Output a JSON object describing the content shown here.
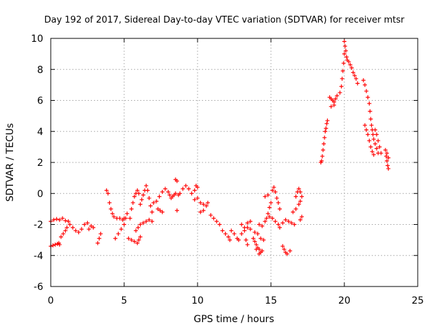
{
  "chart_data": {
    "type": "scatter",
    "title": "Day 192 of 2017, Sidereal Day-to-day VTEC variation (SDTVAR) for receiver mtsr",
    "xlabel": "GPS time / hours",
    "ylabel": "SDTVAR / TECUs",
    "xlim": [
      0,
      25
    ],
    "ylim": [
      -6,
      10
    ],
    "xticks": [
      0,
      5,
      10,
      15,
      20,
      25
    ],
    "yticks": [
      -6,
      -4,
      -2,
      0,
      2,
      4,
      6,
      8,
      10
    ],
    "xtick_labels": [
      "0",
      "5",
      "10",
      "15",
      "20",
      "25"
    ],
    "ytick_labels": [
      "-6",
      "-4",
      "-2",
      "0",
      "2",
      "4",
      "6",
      "8",
      "10"
    ],
    "grid": true,
    "marker": "+",
    "color": "#ff0000",
    "series": [
      {
        "name": "SDTVAR",
        "segments": [
          [
            [
              0.0,
              -3.4
            ],
            [
              0.15,
              -3.35
            ],
            [
              0.3,
              -3.3
            ],
            [
              0.45,
              -3.25
            ],
            [
              0.55,
              -3.2
            ],
            [
              0.6,
              -3.3
            ]
          ],
          [
            [
              0.0,
              -1.8
            ],
            [
              0.2,
              -1.7
            ],
            [
              0.4,
              -1.65
            ],
            [
              0.6,
              -1.7
            ],
            [
              0.8,
              -1.6
            ],
            [
              1.0,
              -1.75
            ],
            [
              1.2,
              -1.8
            ]
          ],
          [
            [
              0.7,
              -2.8
            ],
            [
              0.85,
              -2.6
            ],
            [
              1.0,
              -2.4
            ],
            [
              1.1,
              -2.2
            ]
          ],
          [
            [
              1.3,
              -2.0
            ],
            [
              1.5,
              -2.2
            ],
            [
              1.7,
              -2.4
            ],
            [
              1.9,
              -2.5
            ],
            [
              2.1,
              -2.3
            ],
            [
              2.3,
              -2.0
            ],
            [
              2.5,
              -1.9
            ]
          ],
          [
            [
              2.6,
              -2.3
            ],
            [
              2.75,
              -2.1
            ],
            [
              2.9,
              -2.2
            ]
          ],
          [
            [
              3.2,
              -3.2
            ],
            [
              3.3,
              -2.9
            ],
            [
              3.4,
              -2.6
            ]
          ],
          [
            [
              3.8,
              0.2
            ],
            [
              3.9,
              0.0
            ],
            [
              4.0,
              -0.6
            ],
            [
              4.1,
              -1.0
            ],
            [
              4.2,
              -1.3
            ],
            [
              4.3,
              -1.5
            ],
            [
              4.5,
              -1.6
            ],
            [
              4.7,
              -1.6
            ],
            [
              4.9,
              -1.7
            ],
            [
              5.0,
              -1.6
            ]
          ],
          [
            [
              4.4,
              -2.9
            ],
            [
              4.6,
              -2.6
            ],
            [
              4.8,
              -2.3
            ],
            [
              5.0,
              -2.0
            ],
            [
              5.1,
              -1.6
            ],
            [
              5.2,
              -1.3
            ]
          ],
          [
            [
              5.3,
              -2.9
            ],
            [
              5.5,
              -3.0
            ],
            [
              5.7,
              -3.1
            ],
            [
              5.9,
              -3.2
            ],
            [
              6.0,
              -3.0
            ],
            [
              6.1,
              -2.8
            ]
          ],
          [
            [
              5.4,
              -1.6
            ],
            [
              5.5,
              -1.0
            ],
            [
              5.6,
              -0.6
            ],
            [
              5.7,
              -0.2
            ],
            [
              5.8,
              0.0
            ],
            [
              5.9,
              0.2
            ],
            [
              6.0,
              0.0
            ]
          ],
          [
            [
              5.8,
              -2.4
            ],
            [
              5.95,
              -2.2
            ],
            [
              6.1,
              -2.0
            ],
            [
              6.3,
              -1.9
            ],
            [
              6.5,
              -1.8
            ],
            [
              6.7,
              -1.7
            ],
            [
              6.9,
              -1.8
            ]
          ],
          [
            [
              6.1,
              -0.7
            ],
            [
              6.2,
              -0.4
            ],
            [
              6.3,
              -0.1
            ],
            [
              6.4,
              0.2
            ],
            [
              6.5,
              0.5
            ],
            [
              6.6,
              0.2
            ],
            [
              6.7,
              -0.3
            ],
            [
              6.8,
              -0.8
            ],
            [
              6.9,
              -1.2
            ]
          ],
          [
            [
              7.0,
              -0.6
            ],
            [
              7.2,
              -0.5
            ],
            [
              7.4,
              -0.2
            ],
            [
              7.6,
              0.1
            ],
            [
              7.8,
              0.3
            ],
            [
              8.0,
              0.1
            ],
            [
              8.1,
              -0.1
            ],
            [
              8.2,
              -0.3
            ]
          ],
          [
            [
              7.3,
              -1.0
            ],
            [
              7.45,
              -1.1
            ],
            [
              7.6,
              -1.2
            ]
          ],
          [
            [
              8.3,
              -0.2
            ],
            [
              8.4,
              -0.1
            ],
            [
              8.5,
              0.0
            ],
            [
              8.7,
              -0.1
            ]
          ],
          [
            [
              8.5,
              0.9
            ],
            [
              8.6,
              0.8
            ]
          ],
          [
            [
              8.6,
              -1.1
            ]
          ],
          [
            [
              8.8,
              0.0
            ],
            [
              9.0,
              0.3
            ],
            [
              9.2,
              0.5
            ],
            [
              9.4,
              0.3
            ],
            [
              9.6,
              0.0
            ],
            [
              9.8,
              0.2
            ],
            [
              9.9,
              0.5
            ],
            [
              10.0,
              0.4
            ]
          ],
          [
            [
              9.8,
              -0.4
            ],
            [
              10.0,
              -0.3
            ],
            [
              10.2,
              -0.6
            ],
            [
              10.4,
              -0.7
            ],
            [
              10.6,
              -0.8
            ],
            [
              10.7,
              -0.6
            ]
          ],
          [
            [
              10.2,
              -1.2
            ],
            [
              10.4,
              -1.1
            ]
          ],
          [
            [
              10.9,
              -1.4
            ],
            [
              11.1,
              -1.6
            ],
            [
              11.3,
              -1.8
            ],
            [
              11.5,
              -2.0
            ]
          ],
          [
            [
              11.7,
              -2.4
            ],
            [
              11.9,
              -2.6
            ],
            [
              12.1,
              -2.8
            ],
            [
              12.2,
              -3.0
            ]
          ],
          [
            [
              12.3,
              -2.4
            ],
            [
              12.5,
              -2.6
            ],
            [
              12.7,
              -2.9
            ],
            [
              12.8,
              -3.0
            ],
            [
              13.0,
              -2.6
            ],
            [
              13.2,
              -2.4
            ],
            [
              13.4,
              -2.2
            ],
            [
              13.6,
              -2.3
            ]
          ],
          [
            [
              13.0,
              -2.0
            ],
            [
              13.2,
              -2.2
            ],
            [
              13.4,
              -1.9
            ],
            [
              13.6,
              -1.8
            ]
          ],
          [
            [
              13.3,
              -3.0
            ],
            [
              13.4,
              -3.3
            ]
          ],
          [
            [
              13.8,
              -2.9
            ],
            [
              13.9,
              -3.1
            ],
            [
              14.0,
              -3.3
            ],
            [
              14.1,
              -3.5
            ],
            [
              14.2,
              -3.6
            ],
            [
              14.3,
              -3.8
            ]
          ],
          [
            [
              13.9,
              -2.5
            ],
            [
              14.1,
              -2.6
            ],
            [
              14.3,
              -2.9
            ],
            [
              14.5,
              -3.0
            ]
          ],
          [
            [
              14.0,
              -3.6
            ],
            [
              14.2,
              -3.9
            ],
            [
              14.4,
              -3.7
            ]
          ],
          [
            [
              14.2,
              -2.0
            ],
            [
              14.4,
              -2.1
            ]
          ],
          [
            [
              14.6,
              -1.8
            ],
            [
              14.7,
              -1.6
            ],
            [
              14.8,
              -1.3
            ],
            [
              14.9,
              -0.9
            ],
            [
              15.0,
              -0.6
            ]
          ],
          [
            [
              14.6,
              -0.2
            ],
            [
              14.8,
              -0.1
            ]
          ],
          [
            [
              14.9,
              -1.5
            ],
            [
              15.1,
              -1.6
            ],
            [
              15.3,
              -1.8
            ],
            [
              15.5,
              -2.0
            ],
            [
              15.6,
              -2.2
            ],
            [
              15.8,
              -1.9
            ],
            [
              16.0,
              -1.7
            ],
            [
              16.2,
              -1.8
            ],
            [
              16.4,
              -1.9
            ],
            [
              16.6,
              -2.0
            ]
          ],
          [
            [
              15.1,
              0.2
            ],
            [
              15.2,
              0.4
            ],
            [
              15.3,
              0.1
            ],
            [
              15.4,
              -0.3
            ],
            [
              15.5,
              -0.6
            ],
            [
              15.6,
              -1.0
            ]
          ],
          [
            [
              15.8,
              -3.4
            ],
            [
              15.9,
              -3.6
            ],
            [
              16.0,
              -3.8
            ],
            [
              16.1,
              -3.9
            ],
            [
              16.3,
              -3.7
            ]
          ],
          [
            [
              16.7,
              -0.2
            ],
            [
              16.8,
              0.1
            ],
            [
              16.9,
              0.3
            ],
            [
              17.0,
              0.1
            ],
            [
              17.1,
              -0.2
            ]
          ],
          [
            [
              16.5,
              -1.2
            ],
            [
              16.7,
              -1.0
            ],
            [
              16.9,
              -0.7
            ],
            [
              17.0,
              -0.5
            ]
          ],
          [
            [
              17.0,
              -1.7
            ],
            [
              17.1,
              -1.5
            ]
          ],
          [
            [
              18.4,
              2.0
            ],
            [
              18.45,
              2.1
            ],
            [
              18.5,
              2.4
            ],
            [
              18.55,
              2.8
            ],
            [
              18.6,
              3.2
            ],
            [
              18.65,
              3.6
            ],
            [
              18.7,
              4.0
            ],
            [
              18.75,
              4.2
            ],
            [
              18.8,
              4.5
            ],
            [
              18.85,
              4.7
            ]
          ],
          [
            [
              19.0,
              6.2
            ],
            [
              19.1,
              6.1
            ],
            [
              19.2,
              6.0
            ],
            [
              19.3,
              5.9
            ],
            [
              19.4,
              6.1
            ],
            [
              19.5,
              6.3
            ]
          ],
          [
            [
              19.1,
              5.6
            ],
            [
              19.3,
              5.7
            ]
          ],
          [
            [
              19.7,
              6.5
            ],
            [
              19.8,
              6.9
            ],
            [
              19.85,
              7.4
            ],
            [
              19.9,
              7.9
            ],
            [
              19.95,
              8.4
            ],
            [
              20.0,
              9.0
            ],
            [
              20.05,
              9.5
            ],
            [
              20.1,
              9.2
            ],
            [
              20.15,
              8.8
            ],
            [
              20.2,
              8.6
            ],
            [
              20.3,
              8.5
            ],
            [
              20.4,
              8.3
            ],
            [
              20.5,
              8.1
            ],
            [
              20.6,
              7.8
            ],
            [
              20.7,
              7.6
            ],
            [
              20.8,
              7.4
            ],
            [
              20.9,
              7.1
            ]
          ],
          [
            [
              20.0,
              9.8
            ]
          ],
          [
            [
              21.3,
              7.3
            ],
            [
              21.4,
              7.0
            ],
            [
              21.5,
              6.6
            ],
            [
              21.6,
              6.2
            ],
            [
              21.7,
              5.8
            ],
            [
              21.75,
              5.3
            ],
            [
              21.8,
              4.8
            ],
            [
              21.85,
              4.4
            ],
            [
              21.9,
              4.1
            ],
            [
              21.95,
              3.8
            ],
            [
              22.0,
              3.5
            ],
            [
              22.1,
              3.2
            ],
            [
              22.2,
              2.9
            ],
            [
              22.3,
              2.6
            ]
          ],
          [
            [
              21.4,
              4.4
            ],
            [
              21.5,
              4.1
            ],
            [
              21.6,
              3.8
            ],
            [
              21.7,
              3.4
            ],
            [
              21.8,
              3.0
            ],
            [
              21.9,
              2.7
            ],
            [
              22.0,
              2.5
            ]
          ],
          [
            [
              22.1,
              4.1
            ],
            [
              22.2,
              3.8
            ],
            [
              22.3,
              3.4
            ],
            [
              22.4,
              3.0
            ],
            [
              22.5,
              2.6
            ]
          ],
          [
            [
              22.8,
              2.8
            ],
            [
              22.85,
              2.4
            ],
            [
              22.9,
              2.1
            ],
            [
              22.95,
              1.8
            ],
            [
              23.0,
              1.6
            ],
            [
              22.9,
              2.6
            ],
            [
              23.0,
              2.3
            ]
          ]
        ]
      }
    ]
  }
}
